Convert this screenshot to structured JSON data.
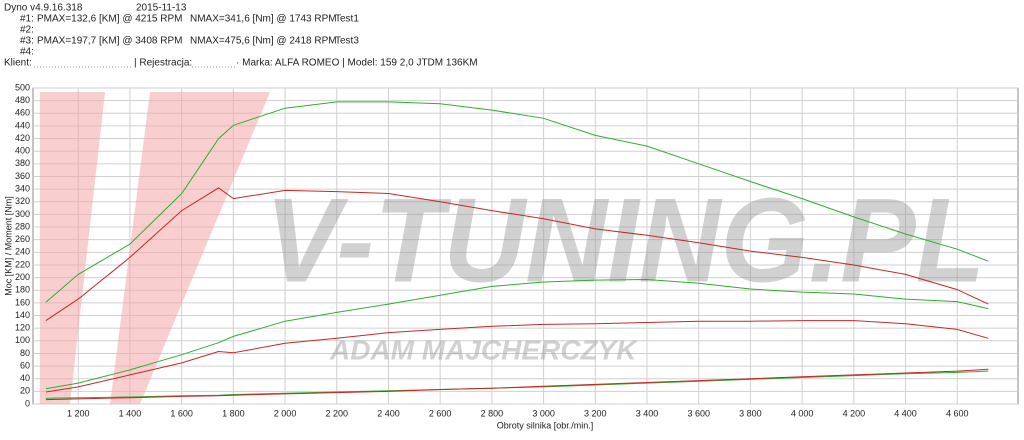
{
  "header": {
    "version": "Dyno v4.9.16.318",
    "date": "2015-11-13",
    "runs": [
      {
        "id": "#1:",
        "pmax": "PMAX=132,6 [KM] @ 4215 RPM",
        "nmax": "NMAX=341,6 [Nm] @ 1743 RPM",
        "name": "Test1"
      },
      {
        "id": "#2:"
      },
      {
        "id": "#3:",
        "pmax": "PMAX=197,7 [KM] @ 3408 RPM",
        "nmax": "NMAX=475,6 [Nm] @ 2418 RPM",
        "name": "Test3"
      },
      {
        "id": "#4:"
      }
    ],
    "client": "Klient:",
    "registration": "| Rejestracja:",
    "vehicle": "· Marka: ALFA ROMEO | Model: 159 2,0 JTDM 136KM"
  },
  "chart_data": {
    "type": "line",
    "xlabel": "Obroty silnika [obr./min.]",
    "ylabel": "Moc [KM] / Moment [Nm]",
    "watermark": [
      "V-TUNING.PL",
      "ADAM MAJCHERCZYK"
    ],
    "x": [
      1075,
      1200,
      1400,
      1600,
      1743,
      1800,
      2000,
      2200,
      2400,
      2600,
      2800,
      3000,
      3200,
      3400,
      3600,
      3800,
      4000,
      4200,
      4400,
      4600,
      4720
    ],
    "series": [
      {
        "color": "#2fae2f",
        "values": [
          161,
          205,
          253,
          333,
          420,
          441,
          468,
          478,
          478,
          475,
          465,
          452,
          425,
          408,
          380,
          352,
          325,
          296,
          269,
          245,
          226
        ]
      },
      {
        "color": "#c62828",
        "values": [
          132,
          166,
          232,
          306,
          342,
          325,
          338,
          336,
          333,
          320,
          306,
          293,
          277,
          267,
          255,
          242,
          232,
          220,
          205,
          181,
          158
        ]
      },
      {
        "color": "#2fae2f",
        "values": [
          24,
          33,
          54,
          78,
          97,
          107,
          131,
          145,
          158,
          172,
          186,
          193,
          196,
          197,
          191,
          182,
          177,
          174,
          166,
          162,
          151
        ]
      },
      {
        "color": "#c62828",
        "values": [
          19,
          27,
          46,
          65,
          83,
          81,
          96,
          104,
          113,
          118,
          123,
          126,
          127,
          129,
          131,
          131,
          132,
          132,
          127,
          118,
          104
        ]
      },
      {
        "color": "#2fae2f",
        "values": [
          9,
          10,
          11,
          13,
          14,
          15,
          17,
          19,
          21,
          23,
          25,
          27,
          30,
          33,
          36,
          39,
          42,
          45,
          48,
          50,
          52
        ]
      },
      {
        "color": "#c62828",
        "values": [
          7,
          8,
          10,
          12,
          13,
          14,
          16,
          18,
          20,
          23,
          25,
          28,
          31,
          34,
          37,
          40,
          43,
          46,
          49,
          52,
          55
        ]
      }
    ],
    "xlim": [
      1025,
      4835
    ],
    "ylim": [
      0,
      500
    ],
    "xticks": [
      {
        "value": 1200,
        "label": "1 200"
      },
      {
        "value": 1400,
        "label": "1 400"
      },
      {
        "value": 1600,
        "label": "1 600"
      },
      {
        "value": 1800,
        "label": "1 800"
      },
      {
        "value": 2000,
        "label": "2 000"
      },
      {
        "value": 2200,
        "label": "2 200"
      },
      {
        "value": 2400,
        "label": "2 400"
      },
      {
        "value": 2600,
        "label": "2 600"
      },
      {
        "value": 2800,
        "label": "2 800"
      },
      {
        "value": 3000,
        "label": "3 000"
      },
      {
        "value": 3200,
        "label": "3 200"
      },
      {
        "value": 3400,
        "label": "3 400"
      },
      {
        "value": 3600,
        "label": "3 600"
      },
      {
        "value": 3800,
        "label": "3 800"
      },
      {
        "value": 4000,
        "label": "4 000"
      },
      {
        "value": 4200,
        "label": "4 200"
      },
      {
        "value": 4400,
        "label": "4 400"
      },
      {
        "value": 4600,
        "label": "4 600"
      }
    ],
    "yticks": [
      0,
      20,
      40,
      60,
      80,
      100,
      120,
      140,
      160,
      180,
      200,
      220,
      240,
      260,
      280,
      300,
      320,
      340,
      360,
      380,
      400,
      420,
      440,
      460,
      480,
      500
    ],
    "grid": true
  }
}
